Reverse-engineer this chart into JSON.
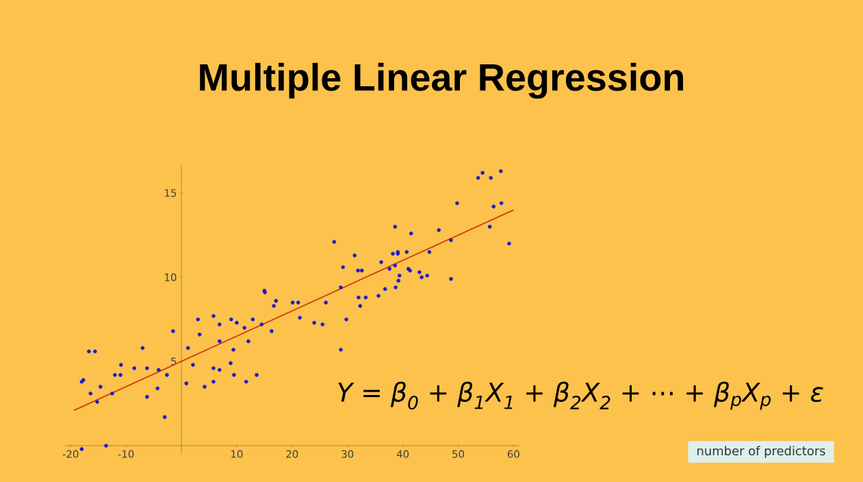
{
  "chart_data": {
    "type": "scatter",
    "title": "Multiple Linear Regression",
    "annotations": [
      "Y = β$_{0}$ + β$_{1}$X$_{1}$ + β$_{2}$X$_{2}$ + ⋯ + β$_{p}$X$_{p}$ + ε",
      "number of predictors"
    ],
    "xlim": [
      -21,
      61
    ],
    "ylim": [
      -0.5,
      16.7
    ],
    "xticks": [
      -20,
      -10,
      10,
      20,
      30,
      40,
      50,
      60
    ],
    "yticks": [
      5,
      10,
      15
    ],
    "grid": false,
    "series": [
      {
        "color": "#1c1ccc",
        "marker": "circle",
        "x": [
          -16.7,
          -15.6,
          -18.0,
          -17.7,
          -16.4,
          -15.2,
          -14.6,
          -12.5,
          -12.0,
          -11.0,
          -10.9,
          -8.5,
          -7.0,
          -6.2,
          -6.2,
          -4.1,
          -4.3,
          -2.6,
          -3.0,
          -1.5,
          -13.6,
          -18.0,
          1.2,
          2.1,
          0.9,
          3.0,
          3.3,
          4.2,
          5.8,
          6.9,
          5.8,
          6.9,
          5.8,
          6.9,
          9.0,
          10.0,
          11.4,
          12.9,
          12.1,
          9.4,
          8.9,
          9.5,
          11.7,
          13.6,
          14.5,
          15.0,
          15.1,
          17.1,
          16.7,
          16.3,
          20.1,
          21.1,
          21.4,
          24.0,
          25.5,
          26.1,
          27.6,
          28.8,
          29.2,
          29.8,
          28.8,
          31.3,
          31.9,
          32.6,
          32.0,
          33.3,
          32.3,
          35.6,
          36.8,
          38.7,
          39.2,
          39.4,
          36.1,
          37.6,
          38.6,
          38.2,
          39.1,
          39.1,
          38.6,
          40.7,
          41.0,
          41.3,
          41.5,
          43.0,
          43.4,
          44.4,
          44.8,
          46.5,
          48.7,
          48.7,
          49.8,
          53.6,
          54.4,
          55.9,
          57.7,
          56.4,
          57.8,
          55.7,
          59.2
        ],
        "values": [
          5.6,
          5.6,
          3.8,
          3.9,
          3.1,
          2.6,
          3.5,
          3.1,
          4.2,
          4.2,
          4.8,
          4.6,
          5.8,
          4.6,
          2.9,
          4.5,
          3.4,
          4.2,
          1.7,
          6.8,
          0.0,
          -0.2,
          5.8,
          4.8,
          3.7,
          7.5,
          6.6,
          3.5,
          7.7,
          7.2,
          4.6,
          4.5,
          3.8,
          6.2,
          7.5,
          7.3,
          7.0,
          7.5,
          6.2,
          5.7,
          4.9,
          4.2,
          3.8,
          4.2,
          7.2,
          9.2,
          9.1,
          8.6,
          8.3,
          6.8,
          8.5,
          8.5,
          7.6,
          7.3,
          7.2,
          8.5,
          12.1,
          9.4,
          10.6,
          7.5,
          5.7,
          11.3,
          10.4,
          10.4,
          8.8,
          8.8,
          8.3,
          8.9,
          9.3,
          9.4,
          9.8,
          10.1,
          10.9,
          10.5,
          10.7,
          11.4,
          11.5,
          11.4,
          13.0,
          11.5,
          10.5,
          10.4,
          12.6,
          10.3,
          10.0,
          10.1,
          11.5,
          12.8,
          9.9,
          12.2,
          14.4,
          15.9,
          16.2,
          15.9,
          16.3,
          14.2,
          14.4,
          13.0,
          12.0
        ]
      },
      {
        "type": "line",
        "color": "#d23c12",
        "x": [
          -19.4,
          60
        ],
        "values": [
          2.1,
          14.0
        ]
      }
    ]
  }
}
